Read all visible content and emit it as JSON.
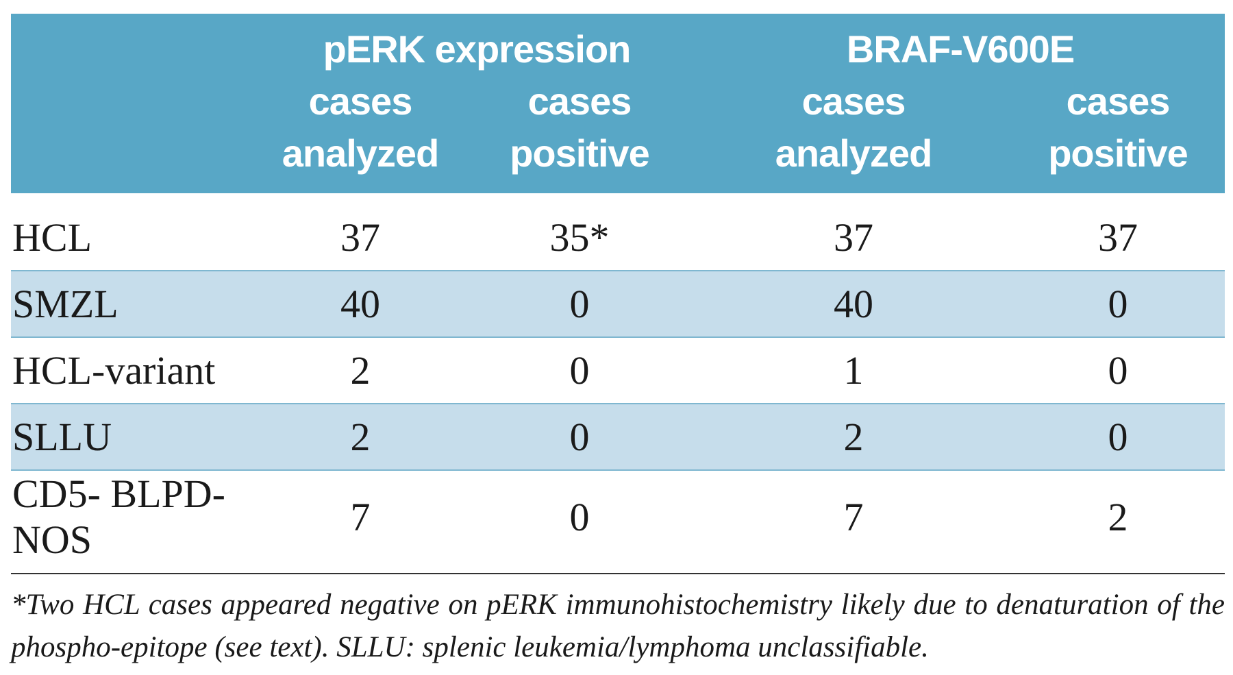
{
  "table": {
    "group_headers": {
      "perk": "pERK expression",
      "braf": "BRAF-V600E"
    },
    "sub_headers": [
      {
        "line1": "cases",
        "line2": "analyzed"
      },
      {
        "line1": "cases",
        "line2": "positive"
      },
      {
        "line1": "cases",
        "line2": "analyzed"
      },
      {
        "line1": "cases",
        "line2": "positive"
      }
    ],
    "rows": [
      {
        "label": "HCL",
        "perk_analyzed": "37",
        "perk_positive": "35*",
        "braf_analyzed": "37",
        "braf_positive": "37"
      },
      {
        "label": "SMZL",
        "perk_analyzed": "40",
        "perk_positive": "0",
        "braf_analyzed": "40",
        "braf_positive": "0"
      },
      {
        "label": "HCL-variant",
        "perk_analyzed": "2",
        "perk_positive": "0",
        "braf_analyzed": "1",
        "braf_positive": "0"
      },
      {
        "label": "SLLU",
        "perk_analyzed": "2",
        "perk_positive": "0",
        "braf_analyzed": "2",
        "braf_positive": "0"
      },
      {
        "label": "CD5- BLPD-NOS",
        "perk_analyzed": "7",
        "perk_positive": "0",
        "braf_analyzed": "7",
        "braf_positive": "2"
      }
    ]
  },
  "footnote": "*Two HCL cases appeared negative on pERK immunohistochemistry likely due to denaturation of the phospho-epitope (see text). SLLU: splenic leukemia/lymphoma unclassifiable.",
  "colors": {
    "header_bg": "#58a7c6",
    "stripe_bg": "#c6ddeb",
    "stripe_border": "#7fb7d0"
  }
}
